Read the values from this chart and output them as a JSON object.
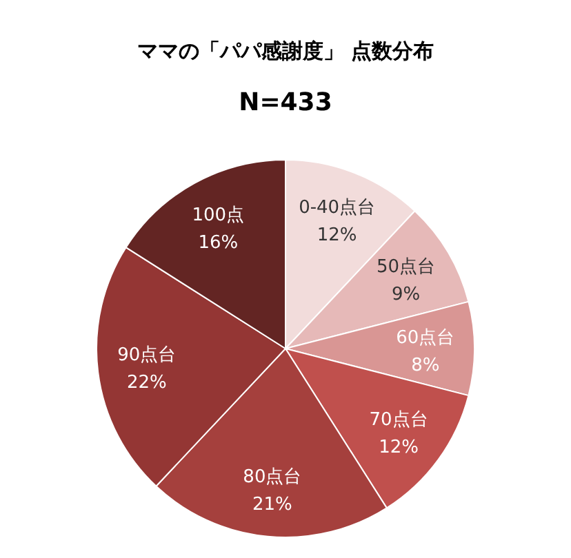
{
  "chart_data": {
    "type": "pie",
    "title": "ママの「パパ感謝度」 点数分布",
    "subtitle": "N=433",
    "categories": [
      "0-40点台",
      "50点台",
      "60点台",
      "70点台",
      "80点台",
      "90点台",
      "100点"
    ],
    "values": [
      12,
      9,
      8,
      12,
      21,
      22,
      16
    ],
    "value_labels": [
      "12%",
      "9%",
      "8%",
      "12%",
      "21%",
      "22%",
      "16%"
    ],
    "colors": [
      "#f2dcdb",
      "#e6b9b8",
      "#d99694",
      "#c0504d",
      "#a5403d",
      "#943634",
      "#632523"
    ]
  }
}
